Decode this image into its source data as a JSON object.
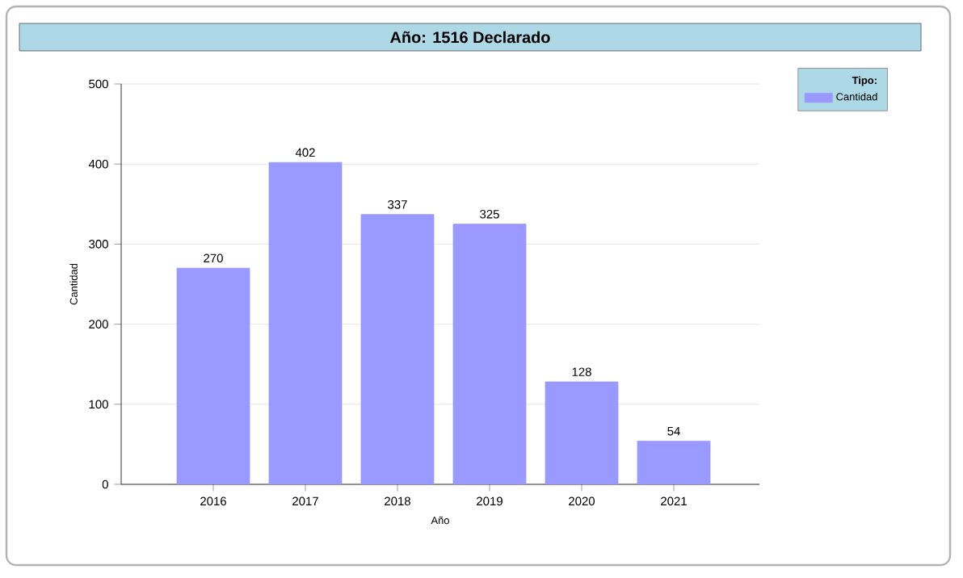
{
  "chart_data": {
    "type": "bar",
    "title": "Año: 1516 Declarado",
    "xlabel": "Año",
    "ylabel": "Cantidad",
    "legend_title": "Tipo:",
    "categories": [
      "2016",
      "2017",
      "2018",
      "2019",
      "2020",
      "2021"
    ],
    "series": [
      {
        "name": "Cantidad",
        "color": "#9999ff",
        "values": [
          270,
          402,
          337,
          325,
          128,
          54
        ]
      }
    ],
    "ylim": [
      0,
      500
    ],
    "yticks": [
      0,
      100,
      200,
      300,
      400,
      500
    ],
    "grid": "y",
    "legend": "top right",
    "data_labels": true
  }
}
